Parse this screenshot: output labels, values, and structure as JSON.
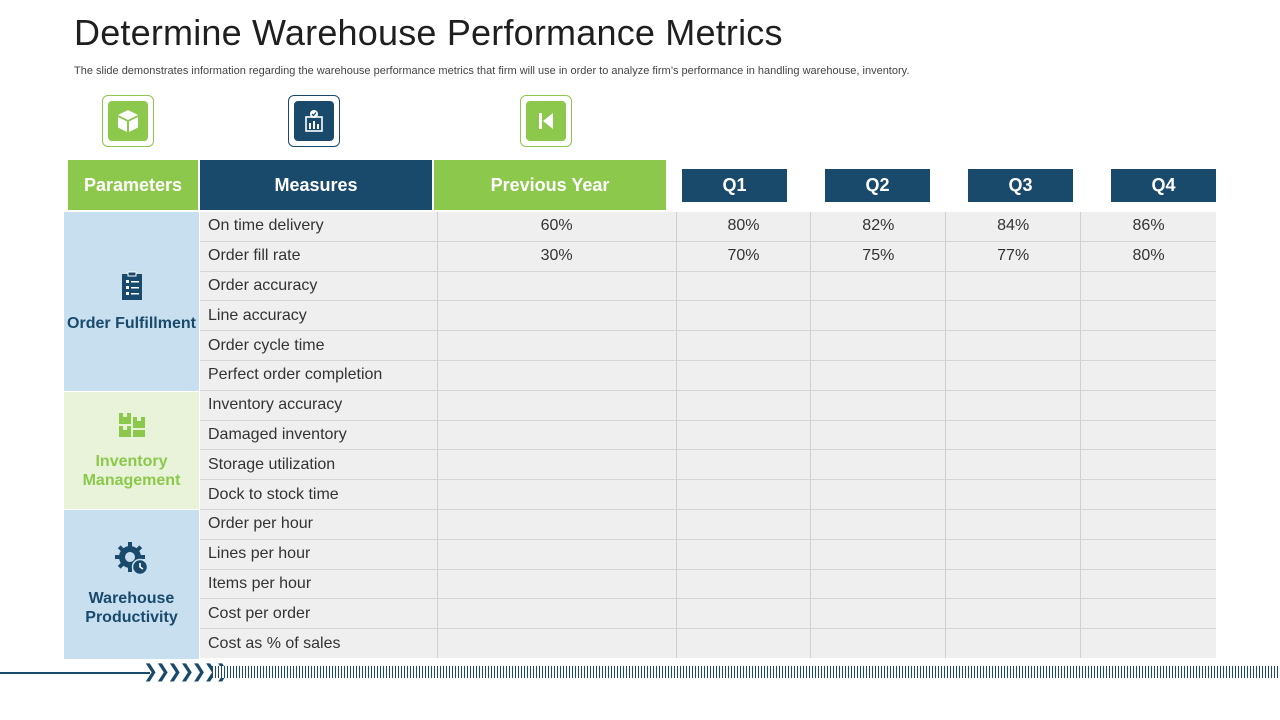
{
  "title": "Determine  Warehouse Performance Metrics",
  "subtitle": "The slide demonstrates information regarding the warehouse performance metrics that firm will use in order to analyze firm’s performance in handling warehouse, inventory.",
  "colors": {
    "green": "#8cc84b",
    "navy": "#1a4a6b",
    "light_blue": "#c7dfef",
    "light_green": "#e8f3da"
  },
  "top_icons": [
    "box-icon",
    "report-checklist-icon",
    "skip-back-icon"
  ],
  "headers": {
    "parameters": "Parameters",
    "measures": "Measures",
    "previous_year": "Previous Year",
    "q1": "Q1",
    "q2": "Q2",
    "q3": "Q3",
    "q4": "Q4"
  },
  "categories": [
    {
      "label": "Order Fulfillment",
      "icon": "clipboard-icon"
    },
    {
      "label": "Inventory Management",
      "icon": "inventory-boxes-icon"
    },
    {
      "label": "Warehouse Productivity",
      "icon": "gear-clock-icon"
    }
  ],
  "rows": [
    {
      "measure": "On time delivery",
      "prev": "60%",
      "q1": "80%",
      "q2": "82%",
      "q3": "84%",
      "q4": "86%"
    },
    {
      "measure": "Order fill rate",
      "prev": "30%",
      "q1": "70%",
      "q2": "75%",
      "q3": "77%",
      "q4": "80%"
    },
    {
      "measure": "Order accuracy",
      "prev": "",
      "q1": "",
      "q2": "",
      "q3": "",
      "q4": ""
    },
    {
      "measure": "Line accuracy",
      "prev": "",
      "q1": "",
      "q2": "",
      "q3": "",
      "q4": ""
    },
    {
      "measure": "Order cycle time",
      "prev": "",
      "q1": "",
      "q2": "",
      "q3": "",
      "q4": ""
    },
    {
      "measure": "Perfect order completion",
      "prev": "",
      "q1": "",
      "q2": "",
      "q3": "",
      "q4": ""
    },
    {
      "measure": "Inventory  accuracy",
      "prev": "",
      "q1": "",
      "q2": "",
      "q3": "",
      "q4": ""
    },
    {
      "measure": "Damaged inventory",
      "prev": "",
      "q1": "",
      "q2": "",
      "q3": "",
      "q4": ""
    },
    {
      "measure": "Storage utilization",
      "prev": "",
      "q1": "",
      "q2": "",
      "q3": "",
      "q4": ""
    },
    {
      "measure": "Dock to stock time",
      "prev": "",
      "q1": "",
      "q2": "",
      "q3": "",
      "q4": ""
    },
    {
      "measure": "Order per hour",
      "prev": "",
      "q1": "",
      "q2": "",
      "q3": "",
      "q4": ""
    },
    {
      "measure": "Lines per hour",
      "prev": "",
      "q1": "",
      "q2": "",
      "q3": "",
      "q4": ""
    },
    {
      "measure": "Items  per hour",
      "prev": "",
      "q1": "",
      "q2": "",
      "q3": "",
      "q4": ""
    },
    {
      "measure": "Cost per order",
      "prev": "",
      "q1": "",
      "q2": "",
      "q3": "",
      "q4": ""
    },
    {
      "measure": "Cost as % of sales",
      "prev": "",
      "q1": "",
      "q2": "",
      "q3": "",
      "q4": ""
    }
  ]
}
